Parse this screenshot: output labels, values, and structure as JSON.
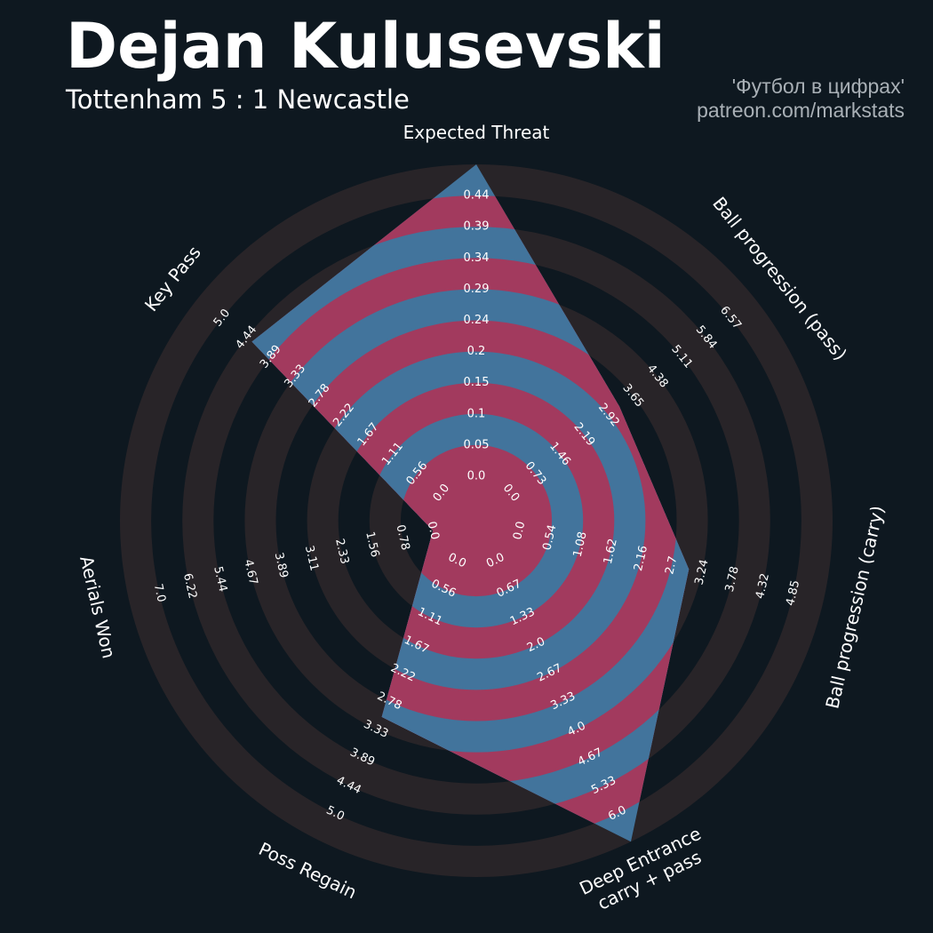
{
  "header": {
    "player_name": "Dejan Kulusevski",
    "match": "Tottenham 5 : 1 Newcastle"
  },
  "credits": {
    "line1": "'Футбол в цифрах'",
    "line2": "patreon.com/markstats"
  },
  "colors": {
    "background": "#0e1820",
    "ring_background": "#282428",
    "band_a": "#a23a5e",
    "band_b": "#42749c",
    "label_text": "#ffffff"
  },
  "chart_data": {
    "type": "radar",
    "title": "Dejan Kulusevski",
    "subtitle": "Tottenham 5 : 1 Newcastle",
    "ring_count": 10,
    "axes": [
      {
        "label": "Expected Threat",
        "value": 0.44,
        "ticks": [
          "0.0",
          "0.05",
          "0.1",
          "0.15",
          "0.2",
          "0.24",
          "0.29",
          "0.34",
          "0.39",
          "0.44"
        ],
        "range": [
          0,
          0.44
        ]
      },
      {
        "label": "Ball progression (pass)",
        "value": 2.92,
        "ticks": [
          "0.0",
          "0.73",
          "1.46",
          "2.19",
          "2.92",
          "3.65",
          "4.38",
          "5.11",
          "5.84",
          "6.57"
        ],
        "range": [
          0,
          6.57
        ]
      },
      {
        "label": "Ball progression (carry)",
        "value": 2.7,
        "ticks": [
          "0.0",
          "0.54",
          "1.08",
          "1.62",
          "2.16",
          "2.7",
          "3.24",
          "3.78",
          "4.32",
          "4.85"
        ],
        "range": [
          0,
          4.85
        ]
      },
      {
        "label": "Deep Entrance\ncarry + pass",
        "value": 6.0,
        "ticks": [
          "0.0",
          "0.67",
          "1.33",
          "2.0",
          "2.67",
          "3.33",
          "4.0",
          "4.67",
          "5.33",
          "6.0"
        ],
        "range": [
          0,
          6.0
        ]
      },
      {
        "label": "Poss Regain",
        "value": 2.78,
        "ticks": [
          "0.0",
          "0.56",
          "1.11",
          "1.67",
          "2.22",
          "2.78",
          "3.33",
          "3.89",
          "4.44",
          "5.0"
        ],
        "range": [
          0,
          5.0
        ]
      },
      {
        "label": "Aerials Won",
        "value": 0.0,
        "ticks": [
          "0.0",
          "0.78",
          "1.56",
          "2.33",
          "3.11",
          "3.89",
          "4.67",
          "5.44",
          "6.22",
          "7.0"
        ],
        "range": [
          0,
          7.0
        ]
      },
      {
        "label": "Key Pass",
        "value": 3.89,
        "ticks": [
          "0.0",
          "0.56",
          "1.11",
          "1.67",
          "2.22",
          "2.78",
          "3.33",
          "3.89",
          "4.44",
          "5.0"
        ],
        "range": [
          0,
          5.0
        ]
      }
    ],
    "grid": true,
    "legend": "none"
  }
}
